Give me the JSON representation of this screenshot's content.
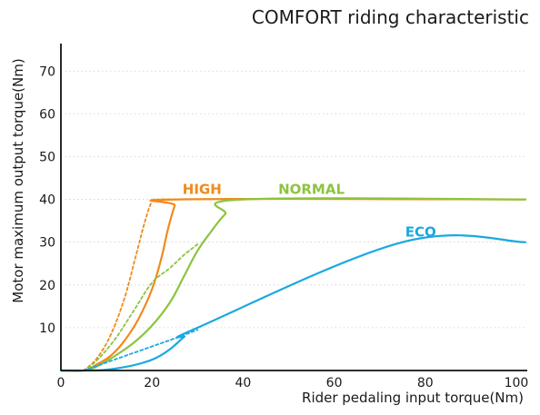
{
  "chart_data": {
    "type": "line",
    "title": "COMFORT riding characteristic",
    "xlabel": "Rider pedaling input torque(Nm)",
    "ylabel": "Motor maximum output torque(Nm)",
    "xlim": [
      0,
      102
    ],
    "ylim": [
      0,
      76
    ],
    "xticks": [
      0,
      20,
      40,
      60,
      80,
      100
    ],
    "yticks": [
      10,
      20,
      30,
      40,
      50,
      60,
      70
    ],
    "grid": true,
    "legend": "none",
    "series": [
      {
        "name": "HIGH",
        "color": "#f08a1c",
        "style": "solid",
        "points": [
          [
            0,
            0
          ],
          [
            5,
            0
          ],
          [
            8,
            1.5
          ],
          [
            11,
            3.5
          ],
          [
            14,
            7
          ],
          [
            17,
            12
          ],
          [
            20,
            19
          ],
          [
            22,
            26
          ],
          [
            23.5,
            33
          ],
          [
            25,
            38.5
          ],
          [
            26,
            40
          ],
          [
            102,
            40
          ]
        ]
      },
      {
        "name": "HIGH",
        "color": "#f08a1c",
        "style": "dashed",
        "showLabel": false,
        "points": [
          [
            5,
            0
          ],
          [
            8,
            3
          ],
          [
            11,
            8.5
          ],
          [
            14,
            17
          ],
          [
            16.5,
            27
          ],
          [
            18.5,
            35
          ],
          [
            20,
            39.5
          ],
          [
            21.5,
            40
          ],
          [
            26,
            40
          ]
        ]
      },
      {
        "name": "NORMAL",
        "color": "#8cc43e",
        "style": "solid",
        "points": [
          [
            0,
            0
          ],
          [
            5,
            0
          ],
          [
            8,
            1
          ],
          [
            12,
            3.5
          ],
          [
            16,
            6.5
          ],
          [
            20,
            10.5
          ],
          [
            24,
            16
          ],
          [
            27,
            22
          ],
          [
            30,
            28
          ],
          [
            33,
            32.5
          ],
          [
            36,
            36.5
          ],
          [
            40,
            40
          ],
          [
            102,
            40
          ]
        ]
      },
      {
        "name": "NORMAL",
        "color": "#8cc43e",
        "style": "dashed",
        "showLabel": false,
        "points": [
          [
            5,
            0
          ],
          [
            8,
            2.5
          ],
          [
            12,
            7.5
          ],
          [
            16,
            14
          ],
          [
            20,
            20.5
          ],
          [
            24,
            24
          ],
          [
            27,
            27
          ],
          [
            30,
            29.5
          ]
        ]
      },
      {
        "name": "ECO",
        "color": "#1aa8e0",
        "style": "solid",
        "points": [
          [
            0,
            0
          ],
          [
            7,
            0
          ],
          [
            10,
            0.2
          ],
          [
            14,
            0.8
          ],
          [
            18,
            1.8
          ],
          [
            21,
            3
          ],
          [
            24,
            5
          ],
          [
            27,
            7.8
          ],
          [
            30,
            10
          ],
          [
            75,
            30
          ],
          [
            102,
            30
          ]
        ]
      },
      {
        "name": "ECO",
        "color": "#1aa8e0",
        "style": "dashed",
        "showLabel": false,
        "points": [
          [
            5,
            0
          ],
          [
            9,
            1.5
          ],
          [
            13,
            3
          ],
          [
            17,
            4.5
          ],
          [
            21,
            6
          ],
          [
            25,
            7.5
          ],
          [
            30,
            9.5
          ]
        ]
      }
    ]
  }
}
